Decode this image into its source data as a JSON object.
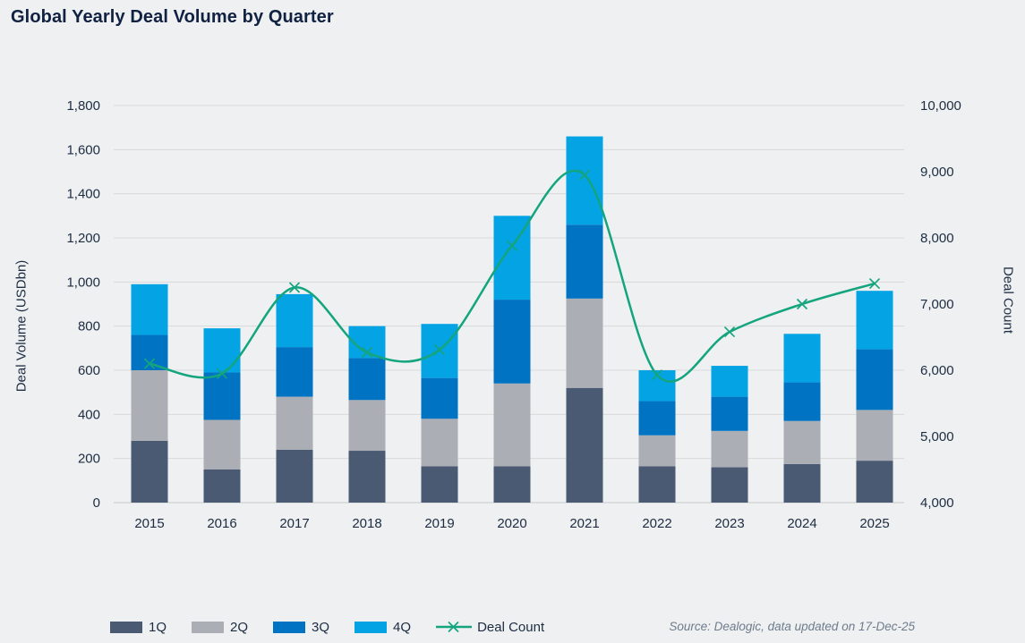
{
  "page": {
    "source_note": "Source: Dealogic, data updated on 17-Dec-25"
  },
  "colors": {
    "background": "#eef0f1",
    "grid": "#d9dadb",
    "zero_line": "#c6c8ca",
    "title_text": "#112142",
    "axis_text": "#1d2c42",
    "source_text": "#6f7c8d"
  },
  "chart_data": {
    "type": "stacked-bar+line",
    "title": "Global Yearly Deal Volume by Quarter",
    "categories": [
      "2015",
      "2016",
      "2017",
      "2018",
      "2019",
      "2020",
      "2021",
      "2022",
      "2023",
      "2024",
      "2025"
    ],
    "series": [
      {
        "name": "1Q",
        "color": "#4b5a73",
        "values": [
          280,
          150,
          240,
          235,
          165,
          165,
          520,
          165,
          160,
          175,
          190
        ]
      },
      {
        "name": "2Q",
        "color": "#abaeb5",
        "values": [
          320,
          225,
          240,
          230,
          215,
          375,
          405,
          140,
          165,
          195,
          230
        ]
      },
      {
        "name": "3Q",
        "color": "#0074c3",
        "values": [
          160,
          215,
          225,
          190,
          185,
          380,
          335,
          155,
          155,
          175,
          275
        ]
      },
      {
        "name": "4Q",
        "color": "#04a3e3",
        "values": [
          230,
          200,
          240,
          145,
          245,
          380,
          400,
          140,
          140,
          220,
          265
        ]
      }
    ],
    "line_series": {
      "name": "Deal Count",
      "color": "#14a57e",
      "axis": "right",
      "values": [
        6100,
        5950,
        7250,
        6270,
        6310,
        7880,
        8950,
        5930,
        6580,
        7000,
        7310
      ]
    },
    "ylabel_left": "Deal Volume (USDbn)",
    "ylabel_right": "Deal Count",
    "ylim_left": [
      0,
      1800
    ],
    "ylim_right": [
      4000,
      10000
    ],
    "y_ticks_left_values": [
      0,
      200,
      400,
      600,
      800,
      1000,
      1200,
      1400,
      1600,
      1800
    ],
    "y_ticks_left_labels": [
      "0",
      "200",
      "400",
      "600",
      "800",
      "1,000",
      "1,200",
      "1,400",
      "1,600",
      "1,800"
    ],
    "y_ticks_right_values": [
      4000,
      5000,
      6000,
      7000,
      8000,
      9000,
      10000
    ],
    "y_ticks_right_labels": [
      "4,000",
      "5,000",
      "6,000",
      "7,000",
      "8,000",
      "9,000",
      "10,000"
    ],
    "grid": true,
    "legend_position": "bottom"
  }
}
